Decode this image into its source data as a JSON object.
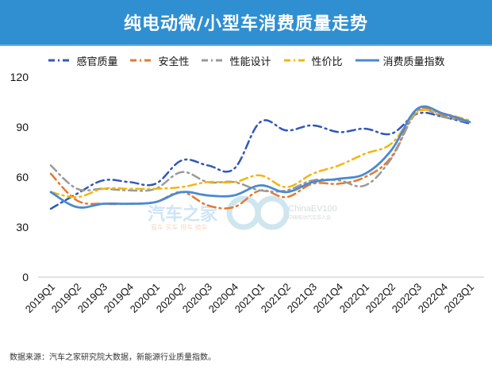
{
  "header": {
    "title": "纯电动微/小型车消费质量走势"
  },
  "legend": {
    "items": [
      {
        "label": "感官质量",
        "color": "#3158b8",
        "style": "dash-dot"
      },
      {
        "label": "安全性",
        "color": "#e6782f",
        "style": "dash-dot"
      },
      {
        "label": "性能设计",
        "color": "#9a9a9a",
        "style": "dash-dot"
      },
      {
        "label": "性价比",
        "color": "#f2b611",
        "style": "dash-dot"
      },
      {
        "label": "消费质量指数",
        "color": "#4a8ad0",
        "style": "solid"
      }
    ]
  },
  "watermark": {
    "brand": "汽车之家",
    "tags": "看车 买车 用车 换车",
    "partner": "ChinaEV100",
    "partner_sub": "中国电动汽车百人会"
  },
  "footer": {
    "source": "数据来源：汽车之家研究院大数据，新能源行业质量指数。"
  },
  "chart_data": {
    "type": "line",
    "title": "纯电动微/小型车消费质量走势",
    "xlabel": "",
    "ylabel": "",
    "ylim": [
      0,
      120
    ],
    "yticks": [
      0,
      30,
      60,
      90,
      120
    ],
    "grid": false,
    "legend_position": "top",
    "categories": [
      "2019Q1",
      "2019Q2",
      "2019Q3",
      "2019Q4",
      "2020Q1",
      "2020Q2",
      "2020Q3",
      "2020Q4",
      "2021Q1",
      "2021Q2",
      "2021Q3",
      "2021Q4",
      "2022Q1",
      "2022Q2",
      "2022Q3",
      "2022Q4",
      "2023Q1"
    ],
    "series": [
      {
        "name": "感官质量",
        "color": "#3158b8",
        "dash": "10,5,2,5",
        "width": 2.5,
        "values": [
          41,
          50,
          58,
          57,
          56,
          70,
          67,
          65,
          93,
          88,
          91,
          87,
          89,
          86,
          98,
          96,
          92
        ]
      },
      {
        "name": "安全性",
        "color": "#e6782f",
        "dash": "10,5,2,5",
        "width": 2.5,
        "values": [
          62,
          46,
          44,
          44,
          45,
          51,
          43,
          42,
          52,
          48,
          56,
          56,
          60,
          72,
          100,
          97,
          93
        ]
      },
      {
        "name": "性能设计",
        "color": "#9a9a9a",
        "dash": "10,5,2,5",
        "width": 2.5,
        "values": [
          67,
          53,
          53,
          52,
          53,
          63,
          57,
          57,
          52,
          52,
          58,
          58,
          55,
          71,
          99,
          96,
          93
        ]
      },
      {
        "name": "性价比",
        "color": "#f2b611",
        "dash": "10,5,2,5",
        "width": 2.5,
        "values": [
          51,
          48,
          53,
          53,
          53,
          54,
          57,
          57,
          61,
          54,
          62,
          67,
          74,
          80,
          99,
          98,
          94
        ]
      },
      {
        "name": "消费质量指数",
        "color": "#4a8ad0",
        "dash": "",
        "width": 2.8,
        "values": [
          51,
          42,
          44,
          44,
          45,
          51,
          49,
          49,
          55,
          51,
          57,
          59,
          62,
          76,
          101,
          98,
          93
        ]
      }
    ]
  }
}
